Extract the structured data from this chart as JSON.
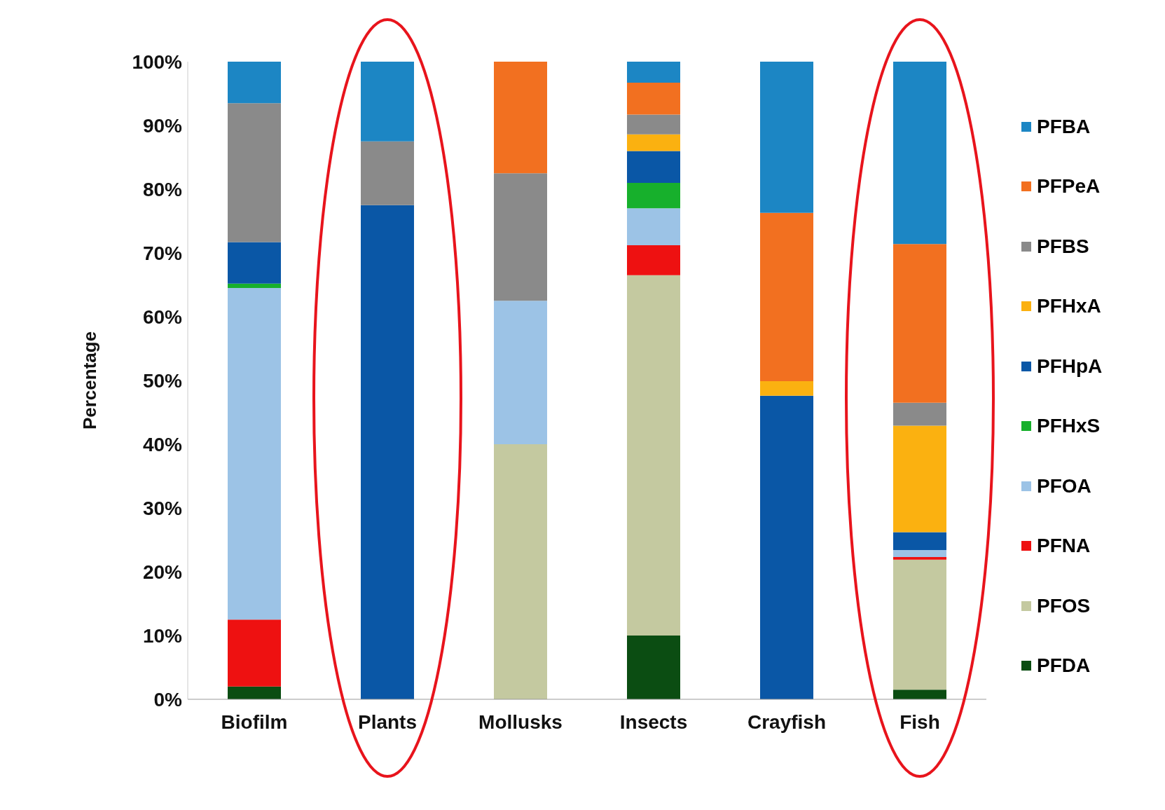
{
  "chart_data": {
    "type": "bar",
    "stacked": true,
    "ylabel": "Percentage",
    "categories": [
      "Biofilm",
      "Plants",
      "Mollusks",
      "Insects",
      "Crayfish",
      "Fish"
    ],
    "series": [
      {
        "name": "PFDA",
        "color": "#0b4d12",
        "values": [
          2,
          0,
          0,
          10,
          0,
          1.5
        ]
      },
      {
        "name": "PFOS",
        "color": "#c4c9a0",
        "values": [
          0,
          0,
          40,
          56.5,
          0,
          20.4
        ]
      },
      {
        "name": "PFNA",
        "color": "#ee1111",
        "values": [
          10.5,
          0,
          0,
          4.7,
          0,
          0.4
        ]
      },
      {
        "name": "PFOA",
        "color": "#9cc3e6",
        "values": [
          52,
          0,
          22.5,
          5.8,
          0,
          1.1
        ]
      },
      {
        "name": "PFHxS",
        "color": "#17b02c",
        "values": [
          0.7,
          0,
          0,
          4,
          0,
          0
        ]
      },
      {
        "name": "PFHpA",
        "color": "#0a57a6",
        "values": [
          6.5,
          77.5,
          0,
          5,
          47.6,
          2.8
        ]
      },
      {
        "name": "PFHxA",
        "color": "#fbb110",
        "values": [
          0,
          0,
          0,
          2.6,
          2.3,
          16.7
        ]
      },
      {
        "name": "PFBS",
        "color": "#8a8a8a",
        "values": [
          21.8,
          10,
          20,
          3.1,
          0,
          3.6
        ]
      },
      {
        "name": "PFPeA",
        "color": "#f27020",
        "values": [
          0,
          0,
          17.5,
          5,
          26.4,
          24.9
        ]
      },
      {
        "name": "PFBA",
        "color": "#1c86c4",
        "values": [
          6.5,
          12.5,
          0,
          3.3,
          23.7,
          28.6
        ]
      }
    ],
    "ylim": [
      0,
      100
    ],
    "yticks": [
      {
        "value": 0,
        "label": "0%"
      },
      {
        "value": 10,
        "label": "10%"
      },
      {
        "value": 20,
        "label": "20%"
      },
      {
        "value": 30,
        "label": "30%"
      },
      {
        "value": 40,
        "label": "40%"
      },
      {
        "value": 50,
        "label": "50%"
      },
      {
        "value": 60,
        "label": "60%"
      },
      {
        "value": 70,
        "label": "70%"
      },
      {
        "value": 80,
        "label": "80%"
      },
      {
        "value": 90,
        "label": "90%"
      },
      {
        "value": 100,
        "label": "100%"
      }
    ],
    "grid": false,
    "legend": "right"
  }
}
